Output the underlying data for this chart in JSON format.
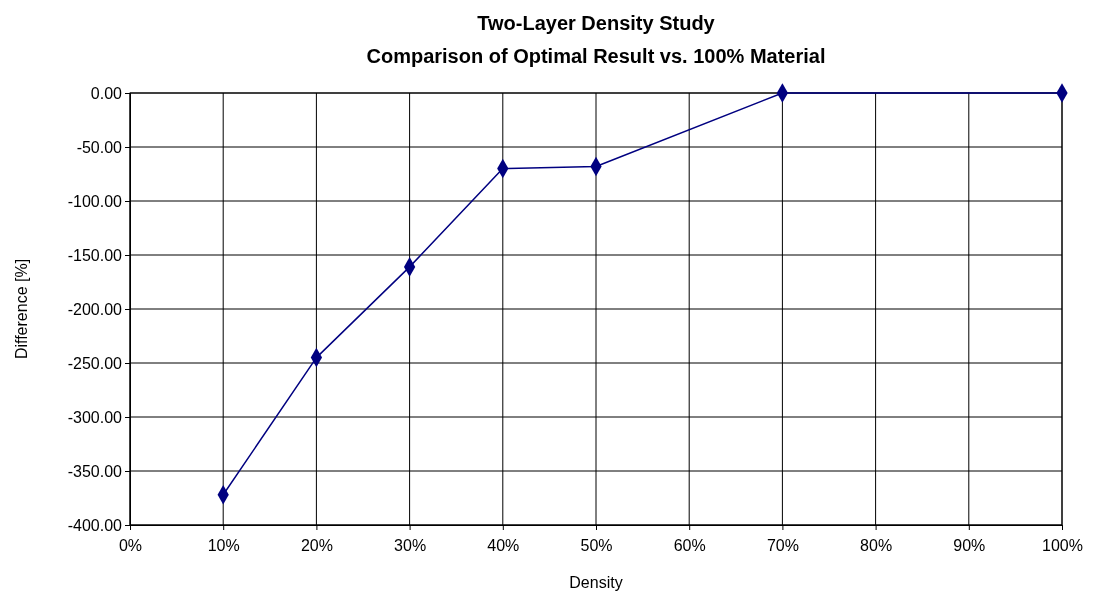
{
  "chart_data": {
    "type": "line",
    "title": "Two-Layer Density Study",
    "subtitle": "Comparison of Optimal Result vs. 100% Material",
    "xlabel": "Density",
    "ylabel": "Difference [%]",
    "x": [
      10,
      20,
      30,
      40,
      50,
      70,
      100
    ],
    "series": [
      {
        "color": "#000080",
        "values": [
          -372,
          -245,
          -161,
          -70,
          -68,
          0,
          0
        ]
      }
    ],
    "xlim": [
      0,
      100
    ],
    "xticks": [
      {
        "value": 0,
        "label": "0%"
      },
      {
        "value": 10,
        "label": "10%"
      },
      {
        "value": 20,
        "label": "20%"
      },
      {
        "value": 30,
        "label": "30%"
      },
      {
        "value": 40,
        "label": "40%"
      },
      {
        "value": 50,
        "label": "50%"
      },
      {
        "value": 60,
        "label": "60%"
      },
      {
        "value": 70,
        "label": "70%"
      },
      {
        "value": 80,
        "label": "80%"
      },
      {
        "value": 90,
        "label": "90%"
      },
      {
        "value": 100,
        "label": "100%"
      }
    ],
    "ylim": [
      -400,
      0
    ],
    "yticks": [
      {
        "value": -400,
        "label": "-400.00"
      },
      {
        "value": -350,
        "label": "-350.00"
      },
      {
        "value": -300,
        "label": "-300.00"
      },
      {
        "value": -250,
        "label": "-250.00"
      },
      {
        "value": -200,
        "label": "-200.00"
      },
      {
        "value": -150,
        "label": "-150.00"
      },
      {
        "value": -100,
        "label": "-100.00"
      },
      {
        "value": -50,
        "label": "-50.00"
      },
      {
        "value": 0,
        "label": "0.00"
      }
    ],
    "grid": true,
    "marker": "diamond",
    "line_style": "solid"
  }
}
